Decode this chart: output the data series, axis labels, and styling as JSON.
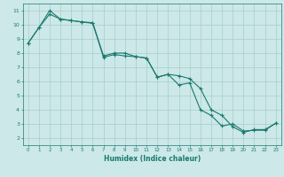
{
  "xlabel": "Humidex (Indice chaleur)",
  "xlim": [
    -0.5,
    23.5
  ],
  "ylim": [
    1.5,
    11.5
  ],
  "xticks": [
    0,
    1,
    2,
    3,
    4,
    5,
    6,
    7,
    8,
    9,
    10,
    11,
    12,
    13,
    14,
    15,
    16,
    17,
    18,
    19,
    20,
    21,
    22,
    23
  ],
  "yticks": [
    2,
    3,
    4,
    5,
    6,
    7,
    8,
    9,
    10,
    11
  ],
  "line_color": "#1a7a6e",
  "bg_color": "#cce8e8",
  "grid_color": "#aacccc",
  "line1_x": [
    0,
    1,
    2,
    3,
    4,
    5,
    6,
    7,
    8,
    9,
    10,
    11,
    12,
    13,
    14,
    15,
    16,
    17,
    18,
    19,
    20,
    21,
    22,
    23
  ],
  "line1_y": [
    8.7,
    9.8,
    10.75,
    10.4,
    10.3,
    10.2,
    10.15,
    7.8,
    8.0,
    8.0,
    7.75,
    7.65,
    6.3,
    6.5,
    5.75,
    5.9,
    4.0,
    3.6,
    2.85,
    3.0,
    2.5,
    2.55,
    2.55,
    3.05
  ],
  "line2_x": [
    0,
    1,
    2,
    3,
    4,
    5,
    6,
    7,
    8,
    9,
    10,
    11,
    12,
    13,
    14,
    15,
    16,
    17,
    18,
    19,
    20,
    21,
    22,
    23
  ],
  "line2_y": [
    8.7,
    9.8,
    11.0,
    10.4,
    10.3,
    10.2,
    10.1,
    7.7,
    7.9,
    7.8,
    7.75,
    7.65,
    6.3,
    6.5,
    6.4,
    6.2,
    5.5,
    4.0,
    3.6,
    2.8,
    2.4,
    2.6,
    2.6,
    3.05
  ]
}
